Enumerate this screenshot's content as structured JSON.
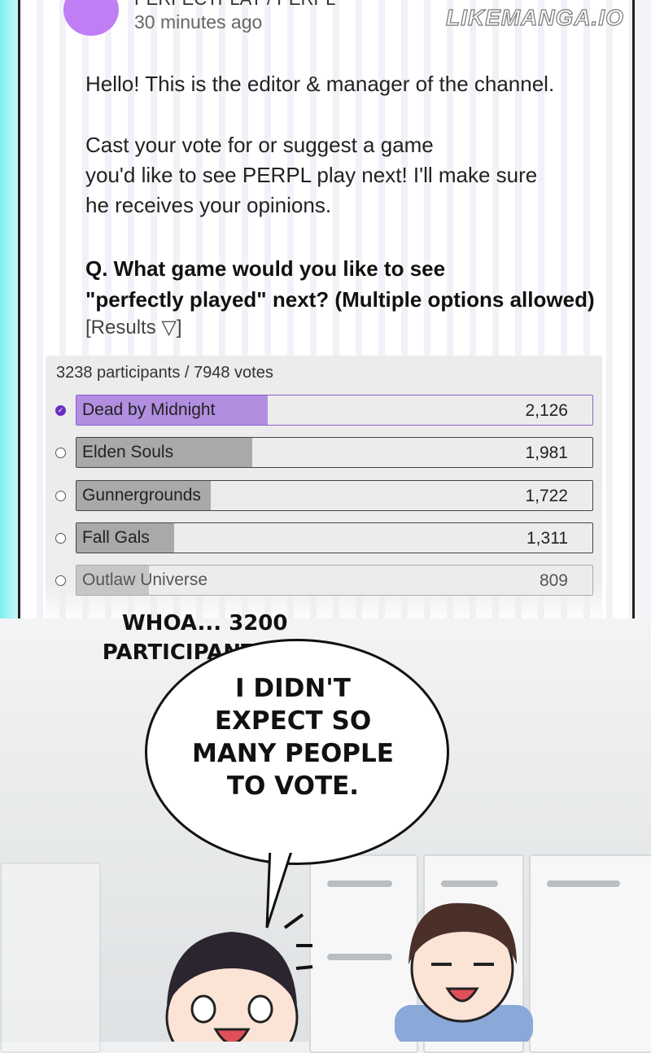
{
  "post": {
    "author": "PERFECTPLAY / PERPL",
    "time": "30 minutes ago",
    "avatar_color": "#c07ef5",
    "paragraphs": [
      "Hello! This is the editor & manager of the channel.",
      "Cast your vote for or suggest a game",
      "you'd like to see PERPL play next! I'll make sure",
      "he receives your opinions."
    ],
    "question_line1": "Q. What game would you like to see",
    "question_line2": "\"perfectly played\" next? (Multiple options allowed)",
    "results_label": "[Results ▽]"
  },
  "watermark": "LIKEMANGA.IO",
  "poll": {
    "summary": "3238 participants / 7948 votes",
    "accent_color": "#6a2fc4",
    "options": [
      {
        "label": "Dead by Midnight",
        "count": "2,126",
        "selected": true,
        "fill_percent": 37
      },
      {
        "label": "Elden Souls",
        "count": "1,981",
        "selected": false,
        "fill_percent": 34
      },
      {
        "label": "Gunnergrounds",
        "count": "1,722",
        "selected": false,
        "fill_percent": 26
      },
      {
        "label": "Fall Gals",
        "count": "1,311",
        "selected": false,
        "fill_percent": 19
      },
      {
        "label": "Outlaw Universe",
        "count": "809",
        "selected": false,
        "fill_percent": 14
      }
    ]
  },
  "dialogue": {
    "small_line1": "WHOA... 3200",
    "small_line2": "PARTICIPANTS?",
    "bubble_lines": [
      "I DIDN'T",
      "EXPECT SO",
      "MANY PEOPLE",
      "TO VOTE."
    ]
  }
}
